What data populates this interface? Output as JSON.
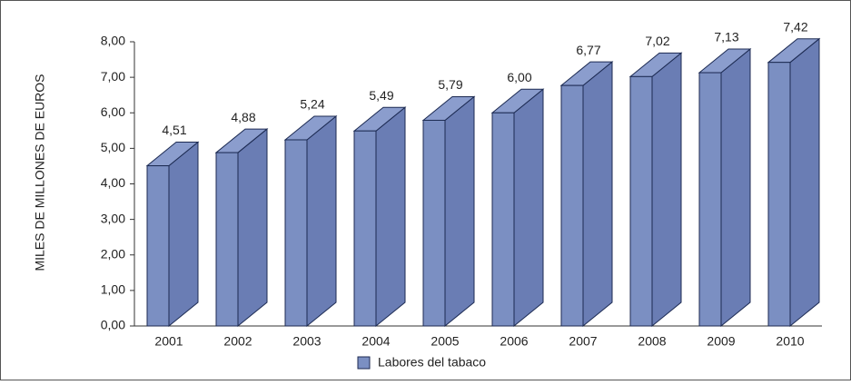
{
  "chart_data": {
    "type": "bar3d",
    "y_label": "MILES DE MILLONES DE EUROS",
    "categories": [
      "2001",
      "2002",
      "2003",
      "2004",
      "2005",
      "2006",
      "2007",
      "2008",
      "2009",
      "2010"
    ],
    "series": [
      {
        "name": "Labores del tabaco",
        "color": "#7b8fc2",
        "values": [
          4.51,
          4.88,
          5.24,
          5.49,
          5.79,
          6.0,
          6.77,
          7.02,
          7.13,
          7.42
        ],
        "value_labels": [
          "4,51",
          "4,88",
          "5,24",
          "5,49",
          "5,79",
          "6,00",
          "6,77",
          "7,02",
          "7,13",
          "7,42"
        ]
      }
    ],
    "ylim": [
      0,
      8
    ],
    "yticks": [
      {
        "value": 0,
        "label": "0,00"
      },
      {
        "value": 1,
        "label": "1,00"
      },
      {
        "value": 2,
        "label": "2,00"
      },
      {
        "value": 3,
        "label": "3,00"
      },
      {
        "value": 4,
        "label": "4,00"
      },
      {
        "value": 5,
        "label": "5,00"
      },
      {
        "value": 6,
        "label": "6,00"
      },
      {
        "value": 7,
        "label": "7,00"
      },
      {
        "value": 8,
        "label": "8,00"
      }
    ],
    "legend": "bottom"
  }
}
